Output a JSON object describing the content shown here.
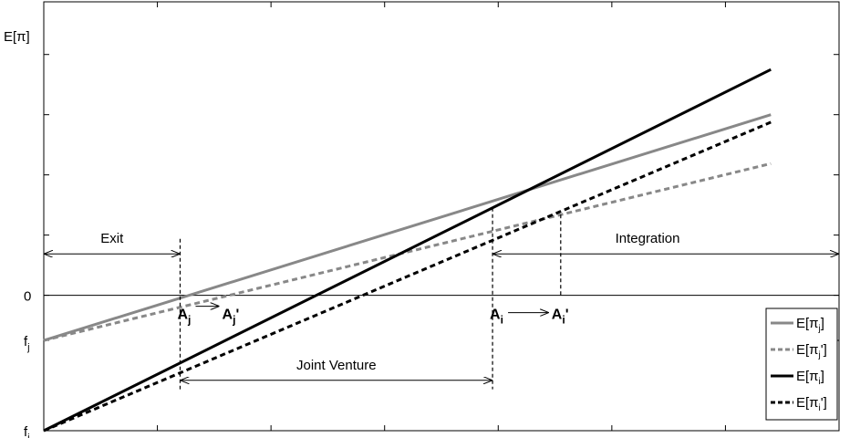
{
  "chart_data": {
    "type": "line",
    "ylabel": "E[π]",
    "xlim": [
      0,
      7
    ],
    "ylim": [
      -1.8,
      3.9
    ],
    "grid": false,
    "legend_placement": "bottom-right",
    "y_tick_labels": [
      {
        "value": 0,
        "label": "0"
      },
      {
        "value": -0.6,
        "label": "f",
        "sub": "j"
      },
      {
        "value": -1.8,
        "label": "f",
        "sub": "i"
      }
    ],
    "series": [
      {
        "legend": "E[π",
        "legend_sub": "j",
        "legend_close": "]",
        "color": "#888888",
        "dash": false,
        "x": [
          0,
          6.4
        ],
        "y": [
          -0.6,
          2.4
        ]
      },
      {
        "legend": "E[π",
        "legend_sub": "j",
        "legend_close": "']",
        "color": "#888888",
        "dash": true,
        "x": [
          0,
          6.4
        ],
        "y": [
          -0.6,
          1.75
        ]
      },
      {
        "legend": "E[π",
        "legend_sub": "i",
        "legend_close": "]",
        "color": "#000000",
        "dash": false,
        "x": [
          0,
          6.4
        ],
        "y": [
          -1.8,
          3.0
        ]
      },
      {
        "legend": "E[π",
        "legend_sub": "i",
        "legend_close": "']",
        "color": "#000000",
        "dash": true,
        "x": [
          0,
          6.4
        ],
        "y": [
          -1.8,
          2.3
        ]
      }
    ],
    "points": [
      {
        "label": "A",
        "sub": "j",
        "x": 1.2
      },
      {
        "label": "A",
        "sub": "j",
        "prime": "'",
        "x": 1.65
      },
      {
        "label": "A",
        "sub": "i",
        "x": 3.95
      },
      {
        "label": "A",
        "sub": "i",
        "prime": "'",
        "x": 4.55
      }
    ],
    "regions": [
      {
        "label": "Exit",
        "from": 0,
        "to": 1.2
      },
      {
        "label": "Joint Venture",
        "from": 1.2,
        "to": 3.95
      },
      {
        "label": "Integration",
        "from": 3.95,
        "to": 7
      }
    ]
  }
}
